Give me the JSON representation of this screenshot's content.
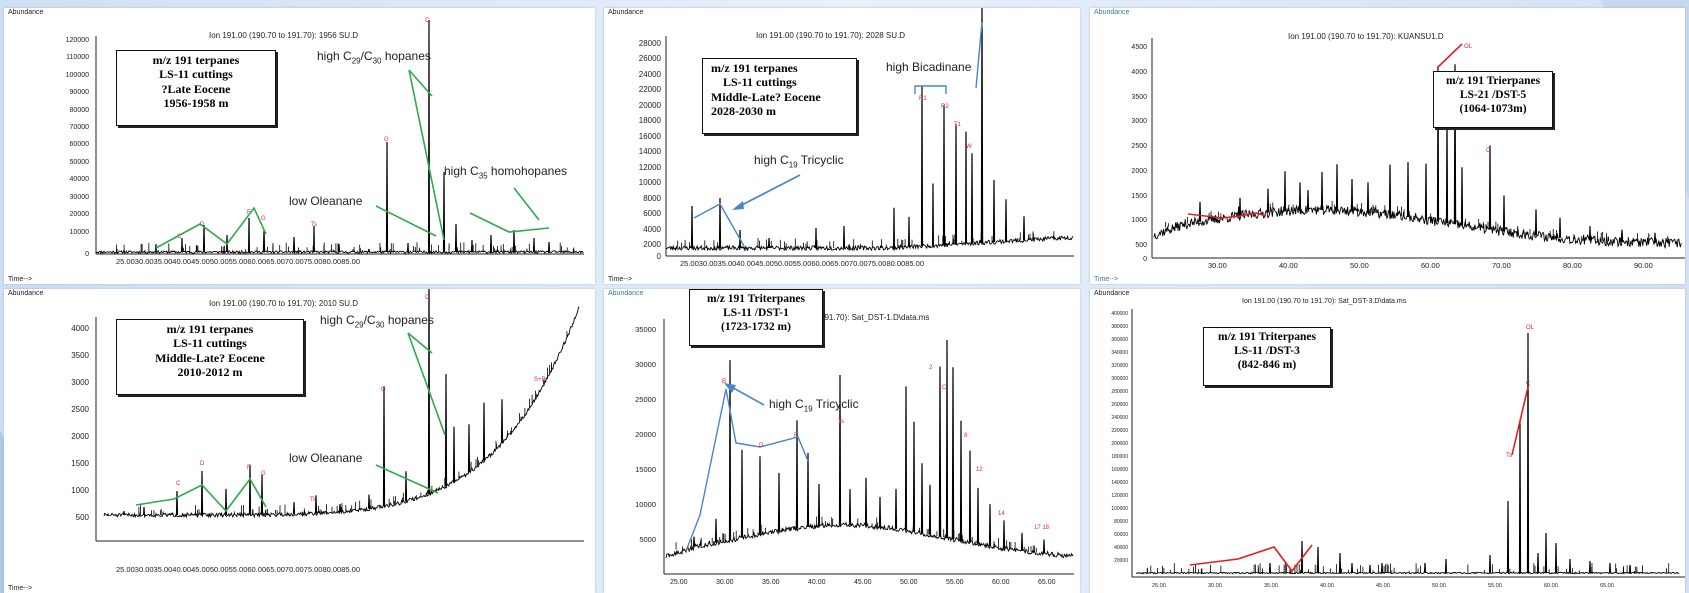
{
  "colors": {
    "annotation_green": "#2eaa4a",
    "annotation_blue": "#4a86c8",
    "annotation_red": "#e02020",
    "trace": "#000000",
    "peak_label": "#e0205a"
  },
  "chart_data": [
    {
      "type": "line",
      "abundance_label": "Abundance",
      "time_label": "Time-->",
      "ion_label": "Ion 191.00 (190.70 to 191.70): 1956 SU.D",
      "box": [
        "m/z 191 terpanes",
        "LS-11  cuttings",
        "?Late Eocene",
        "1956-1958 m"
      ],
      "yticks": [
        "120000",
        "110000",
        "100000",
        "90000",
        "80000",
        "70000",
        "60000",
        "50000",
        "40000",
        "30000",
        "20000",
        "10000",
        "0"
      ],
      "xtick_text": "25.0030.0035.0040.0045.0050.0055.0060.0065.0070.0075.0080.0085.00",
      "annotations": {
        "hopanes": {
          "pre": "high C",
          "a": "29",
          "mid": "/C",
          "b": "30",
          "post": " hopanes"
        },
        "oleanane": "low Oleanane",
        "homohopanes": {
          "pre": "high C",
          "a": "35",
          "post": "  homohopanes"
        }
      }
    },
    {
      "type": "line",
      "abundance_label": "Abundance",
      "time_label": "Time-->",
      "ion_label": "Ion 191.00 (190.70 to 191.70): 2028 SU.D",
      "box": [
        "m/z 191 terpanes",
        "LS-11  cuttings",
        "Middle-Late? Eocene",
        "2028-2030 m"
      ],
      "yticks": [
        "28000",
        "26000",
        "24000",
        "22000",
        "20000",
        "18000",
        "16000",
        "14000",
        "12000",
        "10000",
        "8000",
        "6000",
        "4000",
        "2000",
        "0"
      ],
      "xtick_text": "25.0030.0035.0040.0045.0050.0055.0060.0065.0070.0075.0080.0085.00",
      "annotations": {
        "bicadinane": "high Bicadinane",
        "tricyclic": {
          "pre": "high C",
          "a": "19",
          "post": "  Tricyclic"
        }
      }
    },
    {
      "type": "line",
      "abundance_label": "Abundance",
      "time_label": "Time-->",
      "ion_label": "Ion 191.00 (190.70 to 191.70): KUANSU1.D",
      "box": [
        "m/z 191 Trierpanes",
        "LS-21   /DST-5",
        "(1064-1073m)"
      ],
      "yticks": [
        "4500",
        "4000",
        "3500",
        "3000",
        "2500",
        "2000",
        "1500",
        "1000",
        "500",
        "0"
      ],
      "xticks": [
        "30.00",
        "40.00",
        "50.00",
        "60.00",
        "70.00",
        "80.00",
        "90.00"
      ]
    },
    {
      "type": "line",
      "abundance_label": "Abundance",
      "time_label": "Time-->",
      "ion_label": "Ion 191.00 (190.70 to 191.70): 2010 SU.D",
      "box": [
        "m/z 191 terpanes",
        "LS-11  cuttings",
        "Middle-Late? Eocene",
        "2010-2012 m"
      ],
      "yticks": [
        "4000",
        "3500",
        "3000",
        "2500",
        "2000",
        "1500",
        "1000",
        "500"
      ],
      "xtick_text": "25.0030.0035.0040.0045.0050.0055.0060.0065.0070.0075.0080.0085.00",
      "annotations": {
        "hopanes": {
          "pre": "high C",
          "a": "29",
          "mid": "/C",
          "b": "30",
          "post": " hopanes"
        },
        "oleanane": "low Oleanane"
      }
    },
    {
      "type": "line",
      "abundance_label": "Abundance",
      "time_label": "Time-->",
      "ion_label": "70 to 191.70): Sat_DST-1.D\\data.ms",
      "box": [
        "m/z 191 Triterpanes",
        "LS-11  /DST-1",
        "(1723-1732 m)"
      ],
      "yticks": [
        "35000",
        "30000",
        "25000",
        "20000",
        "15000",
        "10000",
        "5000"
      ],
      "xticks": [
        "25.00",
        "30.00",
        "35.00",
        "40.00",
        "45.00",
        "50.00",
        "55.00",
        "60.00",
        "65.00"
      ],
      "annotations": {
        "tricyclic": {
          "pre": "high C",
          "a": "19",
          "post": "  Tricyclic"
        }
      }
    },
    {
      "type": "line",
      "abundance_label": "Abundance",
      "time_label": "Time-->",
      "ion_label": "Ion 191.00 (190.70 to 191.70): Sat_DST-3.D\\data.ms",
      "box": [
        "m/z 191 Triterpanes",
        "LS-11  /DST-3",
        "(842-846 m)"
      ],
      "yticks": [
        "400000",
        "380000",
        "360000",
        "340000",
        "320000",
        "300000",
        "280000",
        "260000",
        "240000",
        "220000",
        "200000",
        "180000",
        "160000",
        "140000",
        "120000",
        "100000",
        "80000",
        "60000",
        "40000",
        "20000"
      ],
      "xticks": [
        "25.00",
        "30.00",
        "35.00",
        "40.00",
        "45.00",
        "50.00",
        "55.00",
        "60.00",
        "65.00"
      ]
    }
  ]
}
